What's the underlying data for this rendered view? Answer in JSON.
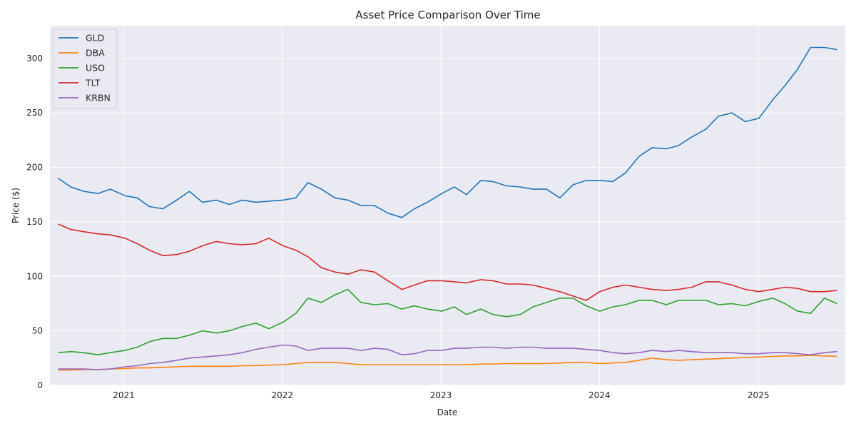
{
  "chart_data": {
    "type": "line",
    "title": "Asset Price Comparison Over Time",
    "xlabel": "Date",
    "ylabel": "Price ($)",
    "xlim": [
      "2020-07-15",
      "2025-07-20"
    ],
    "ylim": [
      0,
      330
    ],
    "x_ticks": [
      "2021",
      "2022",
      "2023",
      "2024",
      "2025"
    ],
    "y_ticks": [
      0,
      50,
      100,
      150,
      200,
      250,
      300
    ],
    "grid": true,
    "legend_position": "top-left",
    "x": [
      "2020-08-03",
      "2020-09-01",
      "2020-10-01",
      "2020-11-02",
      "2020-12-01",
      "2021-01-04",
      "2021-02-01",
      "2021-03-01",
      "2021-04-01",
      "2021-05-03",
      "2021-06-01",
      "2021-07-01",
      "2021-08-02",
      "2021-09-01",
      "2021-10-01",
      "2021-11-01",
      "2021-12-01",
      "2022-01-03",
      "2022-02-01",
      "2022-03-01",
      "2022-04-01",
      "2022-05-02",
      "2022-06-01",
      "2022-07-01",
      "2022-08-01",
      "2022-09-01",
      "2022-10-03",
      "2022-11-01",
      "2022-12-01",
      "2023-01-03",
      "2023-02-01",
      "2023-03-01",
      "2023-04-03",
      "2023-05-01",
      "2023-06-01",
      "2023-07-03",
      "2023-08-01",
      "2023-09-01",
      "2023-10-02",
      "2023-11-01",
      "2023-12-01",
      "2024-01-02",
      "2024-02-01",
      "2024-03-01",
      "2024-04-01",
      "2024-05-01",
      "2024-06-03",
      "2024-07-01",
      "2024-08-01",
      "2024-09-02",
      "2024-10-01",
      "2024-11-01",
      "2024-12-02",
      "2025-01-02",
      "2025-02-03",
      "2025-03-03",
      "2025-04-01",
      "2025-05-01",
      "2025-06-02",
      "2025-07-01"
    ],
    "series": [
      {
        "name": "GLD",
        "color": "#1f77b4",
        "values": [
          190,
          182,
          178,
          176,
          180,
          174,
          172,
          164,
          162,
          170,
          178,
          168,
          170,
          166,
          170,
          168,
          169,
          170,
          172,
          186,
          180,
          172,
          170,
          165,
          165,
          158,
          154,
          162,
          168,
          176,
          182,
          175,
          188,
          187,
          183,
          182,
          180,
          180,
          172,
          184,
          188,
          188,
          187,
          195,
          210,
          218,
          217,
          220,
          228,
          235,
          247,
          250,
          242,
          245,
          262,
          275,
          290,
          310,
          310,
          308
        ]
      },
      {
        "name": "DBA",
        "color": "#ff7f0e",
        "values": [
          14,
          14,
          14.5,
          14.5,
          15,
          15.5,
          16,
          16,
          16.5,
          17,
          17.5,
          17.5,
          17.5,
          17.5,
          18,
          18,
          18.5,
          19,
          20,
          21,
          21,
          21,
          20,
          19,
          19,
          19,
          19,
          19,
          19,
          19,
          19,
          19,
          19.5,
          19.5,
          20,
          20,
          20,
          20,
          20.5,
          21,
          21,
          20,
          20.5,
          21,
          23,
          25,
          23.5,
          23,
          23.5,
          24,
          24.5,
          25,
          25.5,
          26,
          26.5,
          27,
          27,
          27.5,
          27,
          26.5
        ]
      },
      {
        "name": "USO",
        "color": "#2ca02c",
        "values": [
          30,
          31,
          30,
          28,
          30,
          32,
          35,
          40,
          43,
          43,
          46,
          50,
          48,
          50,
          54,
          57,
          52,
          58,
          66,
          80,
          76,
          83,
          88,
          76,
          74,
          75,
          70,
          73,
          70,
          68,
          72,
          65,
          70,
          65,
          63,
          65,
          72,
          76,
          80,
          80,
          73,
          68,
          72,
          74,
          78,
          78,
          74,
          78,
          78,
          78,
          74,
          75,
          73,
          77,
          80,
          75,
          68,
          66,
          80,
          75
        ]
      },
      {
        "name": "TLT",
        "color": "#d62728",
        "values": [
          148,
          143,
          141,
          139,
          138,
          135,
          130,
          124,
          119,
          120,
          123,
          128,
          132,
          130,
          129,
          130,
          135,
          128,
          124,
          118,
          108,
          104,
          102,
          106,
          104,
          96,
          88,
          92,
          96,
          96,
          95,
          94,
          97,
          96,
          93,
          93,
          92,
          89,
          86,
          82,
          78,
          86,
          90,
          92,
          90,
          88,
          87,
          88,
          90,
          95,
          95,
          92,
          88,
          86,
          88,
          90,
          89,
          86,
          86,
          87
        ]
      },
      {
        "name": "KRBN",
        "color": "#9467bd",
        "values": [
          15,
          15,
          15,
          14.5,
          15,
          17,
          18,
          20,
          21,
          23,
          25,
          26,
          27,
          28,
          30,
          33,
          35,
          37,
          36,
          32,
          34,
          34,
          34,
          32,
          34,
          33,
          28,
          29,
          32,
          32,
          34,
          34,
          35,
          35,
          34,
          35,
          35,
          34,
          34,
          34,
          33,
          32,
          30,
          29,
          30,
          32,
          31,
          32,
          31,
          30,
          30,
          30,
          29,
          29,
          30,
          30,
          29,
          28,
          30,
          31
        ]
      }
    ]
  }
}
